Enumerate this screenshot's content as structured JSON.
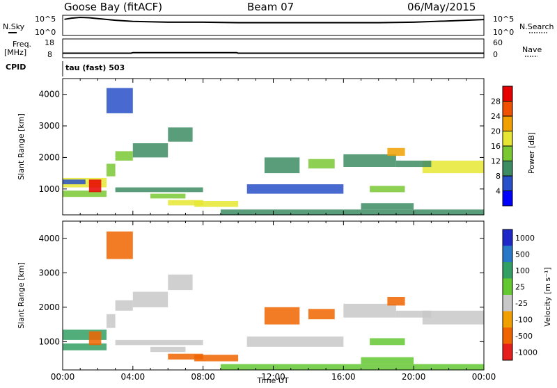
{
  "header": {
    "station": "Goose Bay (fitACF)",
    "beam": "Beam 07",
    "date": "06/May/2015"
  },
  "top_panels": {
    "nsky_label": "N.Sky",
    "nsearch_label": "N.Search",
    "noise_ticks_left": [
      "10^5",
      "10^0"
    ],
    "noise_ticks_right": [
      "10^5",
      "10^0"
    ],
    "freq_label": "Freq.",
    "freq_unit": "[MHz]",
    "nave_label": "Nave",
    "freq_ticks": [
      "18",
      "8"
    ],
    "nave_ticks": [
      "60",
      "0"
    ],
    "cpid_label": "CPID",
    "cpid_text": "tau (fast) 503"
  },
  "chart_data": [
    {
      "type": "line",
      "name": "noise",
      "x_range_hours": [
        0,
        24
      ],
      "y_scale": "log",
      "ylim": [
        1,
        100000
      ],
      "series": [
        {
          "name": "N.Sky",
          "x": [
            0.1,
            0.5,
            1,
            1.5,
            2,
            3,
            4,
            6,
            8,
            10,
            12,
            14,
            16,
            18,
            20,
            22,
            24
          ],
          "y": [
            10000,
            20000,
            30000,
            25000,
            15000,
            6000,
            3000,
            2000,
            2000,
            1500,
            1500,
            1500,
            1500,
            1500,
            2000,
            4000,
            9000
          ]
        }
      ]
    },
    {
      "type": "line",
      "name": "frequency",
      "x_range_hours": [
        0,
        24
      ],
      "ylim": [
        8,
        18
      ],
      "series": [
        {
          "name": "Freq.",
          "x": [
            0,
            3.9,
            4,
            9.9,
            10,
            24
          ],
          "y": [
            10.4,
            10.4,
            10.7,
            10.7,
            10.4,
            10.4
          ]
        }
      ]
    },
    {
      "type": "heatmap",
      "name": "power",
      "xlabel": "",
      "ylabel": "Slant Range [km]",
      "x_ticks": [
        "00:00",
        "04:00",
        "08:00",
        "12:00",
        "16:00",
        "20:00",
        "00:00"
      ],
      "y_ticks": [
        1000,
        2000,
        3000,
        4000
      ],
      "xlim_hours": [
        0,
        24
      ],
      "ylim_km": [
        180,
        4500
      ],
      "colorbar": {
        "label": "Power [dB]",
        "ticks": [
          4,
          8,
          12,
          16,
          20,
          24,
          28
        ],
        "colors": [
          "#0000ff",
          "#2850c8",
          "#3c8c64",
          "#7ac832",
          "#e6e632",
          "#f0a000",
          "#f05000",
          "#e60000"
        ]
      },
      "regions": [
        {
          "t": [
            0.0,
            2.5
          ],
          "r": [
            1050,
            1350
          ],
          "v": 18
        },
        {
          "t": [
            0.0,
            2.5
          ],
          "r": [
            750,
            950
          ],
          "v": 14
        },
        {
          "t": [
            1.5,
            2.2
          ],
          "r": [
            900,
            1300
          ],
          "v": 28
        },
        {
          "t": [
            0.0,
            1.3
          ],
          "r": [
            1150,
            1300
          ],
          "v": 6
        },
        {
          "t": [
            2.5,
            3.0
          ],
          "r": [
            1400,
            1800
          ],
          "v": 14
        },
        {
          "t": [
            3.0,
            4.0
          ],
          "r": [
            1900,
            2200
          ],
          "v": 14
        },
        {
          "t": [
            4.0,
            6.0
          ],
          "r": [
            2000,
            2450
          ],
          "v": 10
        },
        {
          "t": [
            6.0,
            7.4
          ],
          "r": [
            2500,
            2950
          ],
          "v": 8
        },
        {
          "t": [
            3.0,
            8.0
          ],
          "r": [
            900,
            1050
          ],
          "v": 10
        },
        {
          "t": [
            5.0,
            7.0
          ],
          "r": [
            700,
            850
          ],
          "v": 12
        },
        {
          "t": [
            6.0,
            8.0
          ],
          "r": [
            480,
            650
          ],
          "v": 16
        },
        {
          "t": [
            7.5,
            10.0
          ],
          "r": [
            430,
            620
          ],
          "v": 18
        },
        {
          "t": [
            9.0,
            24.0
          ],
          "r": [
            180,
            350
          ],
          "v": 8
        },
        {
          "t": [
            11.5,
            13.5
          ],
          "r": [
            1500,
            2000
          ],
          "v": 8
        },
        {
          "t": [
            14.0,
            15.5
          ],
          "r": [
            1650,
            1950
          ],
          "v": 12
        },
        {
          "t": [
            16.0,
            19.0
          ],
          "r": [
            1700,
            2100
          ],
          "v": 8
        },
        {
          "t": [
            18.5,
            19.5
          ],
          "r": [
            2050,
            2300
          ],
          "v": 20
        },
        {
          "t": [
            20.5,
            24.0
          ],
          "r": [
            1500,
            1900
          ],
          "v": 16
        },
        {
          "t": [
            19.0,
            21.0
          ],
          "r": [
            1700,
            1900
          ],
          "v": 8
        },
        {
          "t": [
            17.5,
            19.5
          ],
          "r": [
            900,
            1100
          ],
          "v": 12
        },
        {
          "t": [
            17.0,
            20.0
          ],
          "r": [
            350,
            550
          ],
          "v": 10
        },
        {
          "t": [
            10.5,
            16.0
          ],
          "r": [
            850,
            1150
          ],
          "v": 6
        },
        {
          "t": [
            2.5,
            4.0
          ],
          "r": [
            3400,
            4200
          ],
          "v": 6
        }
      ]
    },
    {
      "type": "heatmap",
      "name": "velocity",
      "xlabel": "Time UT",
      "ylabel": "Slant Range [km]",
      "x_ticks": [
        "00:00",
        "04:00",
        "08:00",
        "12:00",
        "16:00",
        "20:00",
        "00:00"
      ],
      "y_ticks": [
        1000,
        2000,
        3000,
        4000
      ],
      "xlim_hours": [
        0,
        24
      ],
      "ylim_km": [
        180,
        4500
      ],
      "colorbar": {
        "label": "Velocity [m s⁻¹]",
        "ticks": [
          "1000",
          "500",
          "100",
          "25",
          "-25",
          "-100",
          "-500",
          "-1000"
        ],
        "colors": [
          "#1e28c8",
          "#2878c8",
          "#32a064",
          "#64c832",
          "#c8c8c8",
          "#f0a000",
          "#f06400",
          "#e61e1e"
        ]
      },
      "regions": [
        {
          "t": [
            0.0,
            2.5
          ],
          "r": [
            1050,
            1350
          ],
          "v": 150
        },
        {
          "t": [
            0.0,
            2.5
          ],
          "r": [
            750,
            950
          ],
          "v": 300
        },
        {
          "t": [
            1.5,
            2.2
          ],
          "r": [
            900,
            1300
          ],
          "v": -200
        },
        {
          "t": [
            2.5,
            3.0
          ],
          "r": [
            1400,
            1800
          ],
          "v": 0
        },
        {
          "t": [
            3.0,
            4.0
          ],
          "r": [
            1900,
            2200
          ],
          "v": 0
        },
        {
          "t": [
            4.0,
            6.0
          ],
          "r": [
            2000,
            2450
          ],
          "v": 0
        },
        {
          "t": [
            6.0,
            7.4
          ],
          "r": [
            2500,
            2950
          ],
          "v": 0
        },
        {
          "t": [
            3.0,
            8.0
          ],
          "r": [
            900,
            1050
          ],
          "v": 0
        },
        {
          "t": [
            5.0,
            7.0
          ],
          "r": [
            700,
            850
          ],
          "v": 0
        },
        {
          "t": [
            6.0,
            8.0
          ],
          "r": [
            480,
            650
          ],
          "v": -150
        },
        {
          "t": [
            7.5,
            10.0
          ],
          "r": [
            430,
            620
          ],
          "v": -120
        },
        {
          "t": [
            9.0,
            24.0
          ],
          "r": [
            180,
            350
          ],
          "v": 40
        },
        {
          "t": [
            11.5,
            13.5
          ],
          "r": [
            1500,
            2000
          ],
          "v": -200
        },
        {
          "t": [
            14.0,
            15.5
          ],
          "r": [
            1650,
            1950
          ],
          "v": -110
        },
        {
          "t": [
            16.0,
            19.0
          ],
          "r": [
            1700,
            2100
          ],
          "v": 0
        },
        {
          "t": [
            18.5,
            19.5
          ],
          "r": [
            2050,
            2300
          ],
          "v": -150
        },
        {
          "t": [
            20.5,
            24.0
          ],
          "r": [
            1500,
            1900
          ],
          "v": 0
        },
        {
          "t": [
            19.0,
            21.0
          ],
          "r": [
            1700,
            1900
          ],
          "v": 0
        },
        {
          "t": [
            17.5,
            19.5
          ],
          "r": [
            900,
            1100
          ],
          "v": 50
        },
        {
          "t": [
            17.0,
            20.0
          ],
          "r": [
            350,
            550
          ],
          "v": 50
        },
        {
          "t": [
            10.5,
            16.0
          ],
          "r": [
            850,
            1150
          ],
          "v": 0
        },
        {
          "t": [
            2.5,
            4.0
          ],
          "r": [
            3400,
            4200
          ],
          "v": -120
        }
      ]
    }
  ]
}
